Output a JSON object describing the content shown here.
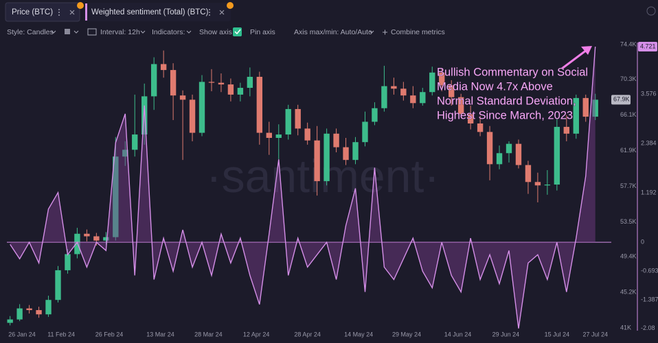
{
  "ui": {
    "tabs": [
      "Price (BTC)",
      "Weighted sentiment (Total) (BTC)"
    ],
    "toolbar": [
      "Style: Candles",
      "Interval: 12h",
      "Indicators:",
      "Show axis",
      "Pin axis",
      "Axis max/min: Auto/Auto",
      "Combine metrics"
    ]
  },
  "chart_data": {
    "type": "candlestick",
    "watermark": "·santiment·",
    "annotation": [
      "Bullish Commentary on Social",
      "Media Now 4.7x Above",
      "Normal Standard Deviation,",
      "Highest Since March, 2023"
    ],
    "x": [
      "2024-01-26",
      "2024-01-29",
      "2024-02-01",
      "2024-02-04",
      "2024-02-07",
      "2024-02-10",
      "2024-02-13",
      "2024-02-16",
      "2024-02-19",
      "2024-02-22",
      "2024-02-25",
      "2024-02-28",
      "2024-03-02",
      "2024-03-05",
      "2024-03-08",
      "2024-03-11",
      "2024-03-14",
      "2024-03-17",
      "2024-03-20",
      "2024-03-23",
      "2024-03-26",
      "2024-03-29",
      "2024-04-01",
      "2024-04-04",
      "2024-04-07",
      "2024-04-10",
      "2024-04-13",
      "2024-04-16",
      "2024-04-19",
      "2024-04-22",
      "2024-04-25",
      "2024-04-28",
      "2024-05-01",
      "2024-05-04",
      "2024-05-07",
      "2024-05-10",
      "2024-05-13",
      "2024-05-16",
      "2024-05-19",
      "2024-05-22",
      "2024-05-25",
      "2024-05-28",
      "2024-05-31",
      "2024-06-03",
      "2024-06-06",
      "2024-06-09",
      "2024-06-12",
      "2024-06-15",
      "2024-06-18",
      "2024-06-21",
      "2024-06-24",
      "2024-06-27",
      "2024-06-30",
      "2024-07-03",
      "2024-07-06",
      "2024-07-09",
      "2024-07-12",
      "2024-07-15",
      "2024-07-18",
      "2024-07-21",
      "2024-07-24",
      "2024-07-27"
    ],
    "xlim": [
      "2024-01-25",
      "2024-08-01"
    ],
    "xticks": [
      {
        "value": "2024-01-26",
        "label": "26 Jan 24"
      },
      {
        "value": "2024-02-11",
        "label": "11 Feb 24"
      },
      {
        "value": "2024-02-26",
        "label": "26 Feb 24"
      },
      {
        "value": "2024-03-13",
        "label": "13 Mar 24"
      },
      {
        "value": "2024-03-28",
        "label": "28 Mar 24"
      },
      {
        "value": "2024-04-12",
        "label": "12 Apr 24"
      },
      {
        "value": "2024-04-28",
        "label": "28 Apr 24"
      },
      {
        "value": "2024-05-14",
        "label": "14 May 24"
      },
      {
        "value": "2024-05-29",
        "label": "29 May 24"
      },
      {
        "value": "2024-06-14",
        "label": "14 Jun 24"
      },
      {
        "value": "2024-06-29",
        "label": "29 Jun 24"
      },
      {
        "value": "2024-07-15",
        "label": "15 Jul 24"
      },
      {
        "value": "2024-07-27",
        "label": "27 Jul 24"
      }
    ],
    "ylim": [
      40840,
      74640
    ],
    "yticks": [
      {
        "value": 74400,
        "label": "74.4K"
      },
      {
        "value": 70300,
        "label": "70.3K"
      },
      {
        "value": 66100,
        "label": "66.1K"
      },
      {
        "value": 61900,
        "label": "61.9K"
      },
      {
        "value": 57700,
        "label": "57.7K"
      },
      {
        "value": 53500,
        "label": "53.5K"
      },
      {
        "value": 49400,
        "label": "49.4K"
      },
      {
        "value": 45200,
        "label": "45.2K"
      },
      {
        "value": 41000,
        "label": "41K"
      }
    ],
    "y2lim": [
      -2.1,
      4.82
    ],
    "y2ticks": [
      3.576,
      2.384,
      1.192,
      0,
      -0.693,
      -1.387,
      -2.08
    ],
    "series": [
      {
        "name": "Price (BTC)",
        "type": "candlestick",
        "color_up": "#3dbd8c",
        "color_down": "#e07b6f",
        "last_value_label": "67.9K",
        "open": [
          41600,
          42000,
          43300,
          43100,
          42600,
          44300,
          47800,
          49700,
          52100,
          51800,
          51300,
          51700,
          61200,
          62000,
          63800,
          68300,
          72100,
          71400,
          68400,
          67900,
          64000,
          70000,
          69900,
          69700,
          68500,
          69300,
          70600,
          64000,
          63400,
          63800,
          66800,
          64500,
          63100,
          58300,
          63900,
          62300,
          60800,
          62900,
          65300,
          66900,
          69500,
          69200,
          68400,
          67500,
          68800,
          71100,
          69600,
          68200,
          66200,
          65100,
          64100,
          60300,
          61600,
          62700,
          60200,
          58200,
          57800,
          57900,
          64700,
          63900,
          68100,
          65900
        ],
        "high": [
          42400,
          43800,
          43700,
          43500,
          44800,
          48300,
          50300,
          52800,
          52600,
          52200,
          52300,
          63500,
          63000,
          68500,
          69800,
          72900,
          73700,
          72200,
          69000,
          68500,
          70800,
          71500,
          71000,
          70400,
          69900,
          71700,
          71200,
          65300,
          65000,
          67300,
          67300,
          65200,
          64800,
          64500,
          64500,
          63400,
          63500,
          66500,
          67600,
          71900,
          70500,
          70000,
          69500,
          69300,
          71800,
          71500,
          70200,
          68600,
          67200,
          66000,
          64800,
          62500,
          63000,
          63200,
          60700,
          59300,
          59600,
          65600,
          66100,
          68500,
          68500,
          68600
        ],
        "low": [
          41300,
          41800,
          42700,
          42200,
          42300,
          44000,
          47400,
          49200,
          51200,
          50700,
          50800,
          51300,
          60100,
          61200,
          62600,
          66700,
          70500,
          65500,
          60800,
          63000,
          63600,
          68900,
          68800,
          67700,
          67700,
          68300,
          62600,
          61400,
          60900,
          63200,
          63700,
          62600,
          56600,
          57800,
          61700,
          60200,
          60300,
          62400,
          64900,
          66500,
          68500,
          67800,
          66900,
          67200,
          68400,
          68900,
          67200,
          65800,
          64400,
          63600,
          58400,
          59700,
          60500,
          59800,
          56800,
          55800,
          56700,
          57200,
          63000,
          63300,
          65300,
          65500
        ],
        "close": [
          42000,
          43300,
          43100,
          42600,
          44300,
          47800,
          49700,
          52100,
          51800,
          51300,
          51700,
          61200,
          62000,
          63800,
          68300,
          72100,
          71400,
          68400,
          67900,
          64000,
          70000,
          69900,
          69700,
          68500,
          69300,
          70600,
          64000,
          63400,
          63800,
          66800,
          64500,
          63100,
          58300,
          63900,
          62300,
          60800,
          62900,
          65300,
          66900,
          69500,
          69200,
          68400,
          67500,
          68800,
          71100,
          69600,
          68200,
          66200,
          65100,
          64100,
          60300,
          61600,
          62700,
          60200,
          58200,
          57800,
          57900,
          64700,
          63900,
          68100,
          65900,
          67900
        ]
      },
      {
        "name": "Weighted sentiment (Total) (BTC)",
        "type": "line",
        "axis": "y2",
        "color": "#d58fe8",
        "fill": "#7a3f8c",
        "values": [
          -0.05,
          -0.4,
          0.0,
          -0.5,
          0.8,
          1.2,
          -0.3,
          0.0,
          -0.6,
          0.0,
          -0.2,
          2.4,
          3.1,
          -0.8,
          3.3,
          -0.9,
          0.1,
          -0.7,
          0.3,
          -0.6,
          0.0,
          -0.8,
          0.2,
          -0.5,
          0.1,
          -0.8,
          -1.5,
          0.2,
          2.0,
          -0.8,
          0.1,
          -0.6,
          -0.3,
          0.0,
          -0.9,
          0.4,
          1.3,
          -1.2,
          1.8,
          -0.6,
          -0.9,
          -0.4,
          0.1,
          -0.7,
          -1.1,
          0.0,
          -0.8,
          -1.2,
          0.1,
          -0.9,
          -0.3,
          -1.0,
          -0.2,
          -2.08,
          -0.5,
          -0.3,
          -0.9,
          0.0,
          -1.2,
          0.1,
          1.6,
          4.721
        ]
      }
    ]
  }
}
